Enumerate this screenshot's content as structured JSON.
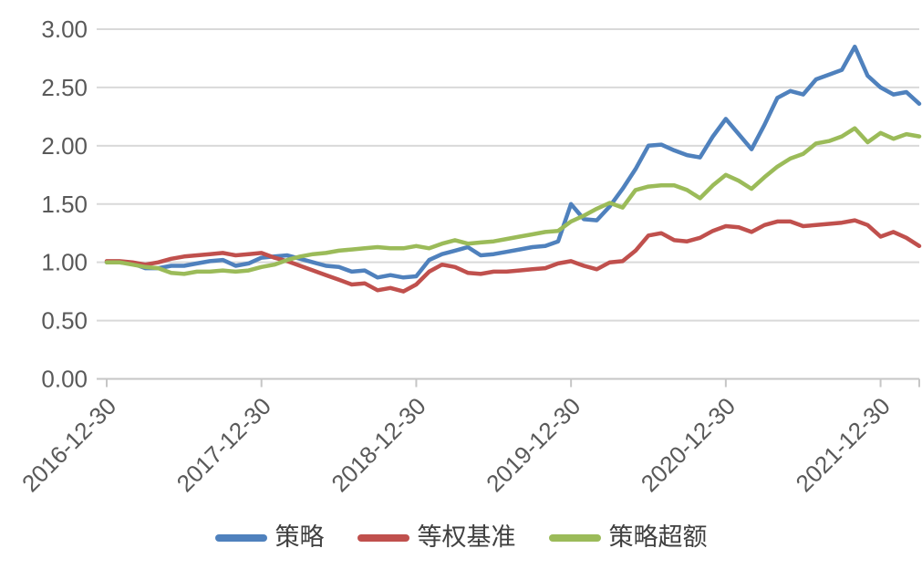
{
  "chart": {
    "background": "#ffffff",
    "grid_color": "#d9d9d9",
    "axis_color": "#c6c6c6",
    "label_color": "#595959",
    "legend_text_color": "#404040"
  },
  "chart_data": {
    "type": "line",
    "title": "",
    "xlabel": "",
    "ylabel": "",
    "grid": "horizontal",
    "legend_position": "bottom",
    "ylim": [
      0.0,
      3.0
    ],
    "y_tick_labels": [
      "3.00",
      "2.50",
      "2.00",
      "1.50",
      "1.00",
      "0.50",
      "0.00"
    ],
    "y_tick_values": [
      3.0,
      2.5,
      2.0,
      1.5,
      1.0,
      0.5,
      0.0
    ],
    "n_points": 64,
    "x_tick_indices": [
      0,
      12,
      24,
      36,
      48,
      60
    ],
    "x_tick_labels": [
      "2016-12-30",
      "2017-12-30",
      "2018-12-30",
      "2019-12-30",
      "2020-12-30",
      "2021-12-30"
    ],
    "series": [
      {
        "name": "策略",
        "color": "#4F81BD",
        "values": [
          1.0,
          1.0,
          0.99,
          0.95,
          0.95,
          0.97,
          0.97,
          0.99,
          1.01,
          1.02,
          0.97,
          0.99,
          1.04,
          1.05,
          1.06,
          1.03,
          1.0,
          0.97,
          0.96,
          0.92,
          0.93,
          0.87,
          0.89,
          0.87,
          0.88,
          1.02,
          1.07,
          1.1,
          1.13,
          1.06,
          1.07,
          1.09,
          1.11,
          1.13,
          1.14,
          1.18,
          1.5,
          1.37,
          1.36,
          1.48,
          1.63,
          1.8,
          2.0,
          2.01,
          1.96,
          1.92,
          1.9,
          2.08,
          2.23,
          2.1,
          1.97,
          2.18,
          2.41,
          2.47,
          2.44,
          2.57,
          2.61,
          2.65,
          2.85,
          2.6,
          2.5,
          2.44,
          2.46,
          2.36
        ]
      },
      {
        "name": "等权基准",
        "color": "#C0504D",
        "values": [
          1.01,
          1.01,
          1.0,
          0.98,
          1.0,
          1.03,
          1.05,
          1.06,
          1.07,
          1.08,
          1.06,
          1.07,
          1.08,
          1.04,
          1.01,
          0.97,
          0.93,
          0.89,
          0.85,
          0.81,
          0.82,
          0.76,
          0.78,
          0.75,
          0.81,
          0.92,
          0.98,
          0.96,
          0.91,
          0.9,
          0.92,
          0.92,
          0.93,
          0.94,
          0.95,
          0.99,
          1.01,
          0.97,
          0.94,
          1.0,
          1.01,
          1.1,
          1.23,
          1.25,
          1.19,
          1.18,
          1.21,
          1.27,
          1.31,
          1.3,
          1.26,
          1.32,
          1.35,
          1.35,
          1.31,
          1.32,
          1.33,
          1.34,
          1.36,
          1.32,
          1.22,
          1.26,
          1.21,
          1.14
        ]
      },
      {
        "name": "策略超额",
        "color": "#9BBB59",
        "values": [
          1.0,
          1.0,
          0.98,
          0.96,
          0.95,
          0.91,
          0.9,
          0.92,
          0.92,
          0.93,
          0.92,
          0.93,
          0.96,
          0.98,
          1.02,
          1.05,
          1.07,
          1.08,
          1.1,
          1.11,
          1.12,
          1.13,
          1.12,
          1.12,
          1.14,
          1.12,
          1.16,
          1.19,
          1.16,
          1.17,
          1.18,
          1.2,
          1.22,
          1.24,
          1.26,
          1.27,
          1.35,
          1.4,
          1.46,
          1.51,
          1.47,
          1.62,
          1.65,
          1.66,
          1.66,
          1.62,
          1.55,
          1.66,
          1.75,
          1.7,
          1.63,
          1.73,
          1.82,
          1.89,
          1.93,
          2.02,
          2.04,
          2.08,
          2.15,
          2.03,
          2.11,
          2.06,
          2.1,
          2.08
        ]
      }
    ]
  },
  "legend": {
    "items": [
      {
        "label": "策略"
      },
      {
        "label": "等权基准"
      },
      {
        "label": "策略超额"
      }
    ]
  }
}
